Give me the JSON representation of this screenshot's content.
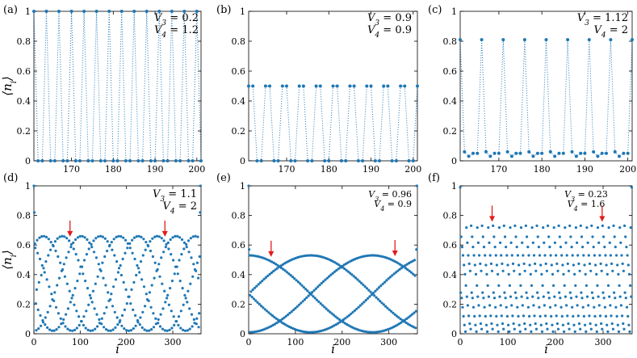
{
  "chart_data": [
    {
      "panel": "(a)",
      "type": "scatter",
      "line_style": "dotted",
      "xlim": [
        161,
        201
      ],
      "ylim": [
        0,
        1
      ],
      "xticks": [
        170,
        180,
        190,
        200
      ],
      "yticks": [
        0,
        0.2,
        0.4,
        0.6,
        0.8,
        1
      ],
      "ylabel": "⟨n_i⟩",
      "xlabel": "",
      "annotations": [
        "V_3 = 0.2",
        "V_4 = 1.2"
      ],
      "pattern": {
        "start": 161,
        "end": 201,
        "period": 3,
        "values": [
          1,
          0,
          0
        ]
      }
    },
    {
      "panel": "(b)",
      "type": "scatter",
      "line_style": "dotted",
      "xlim": [
        161,
        201
      ],
      "ylim": [
        0,
        1
      ],
      "xticks": [
        170,
        180,
        190,
        200
      ],
      "yticks": [
        0,
        0.2,
        0.4,
        0.6,
        0.8,
        1
      ],
      "ylabel": "",
      "xlabel": "",
      "annotations": [
        "V_3 = 0.9",
        "V_4 = 0.9"
      ],
      "pattern": {
        "start": 161,
        "end": 201,
        "period": 4,
        "values": [
          0.5,
          0.5,
          0,
          0
        ]
      }
    },
    {
      "panel": "(c)",
      "type": "scatter",
      "line_style": "dotted",
      "xlim": [
        161,
        201
      ],
      "ylim": [
        0,
        1
      ],
      "xticks": [
        170,
        180,
        190,
        200
      ],
      "yticks": [
        0,
        0.2,
        0.4,
        0.6,
        0.8,
        1
      ],
      "ylabel": "",
      "xlabel": "",
      "annotations": [
        "V_3 = 1.12",
        "V_4 = 2"
      ],
      "pattern": {
        "start": 161,
        "end": 201,
        "period": 5,
        "values": [
          0.81,
          0.06,
          0.03,
          0.05,
          0.05
        ]
      }
    },
    {
      "panel": "(d)",
      "type": "scatter",
      "line_style": "none",
      "xlim": [
        0,
        361
      ],
      "ylim": [
        0,
        1
      ],
      "xticks": [
        0,
        100,
        200,
        300
      ],
      "yticks": [
        0,
        0.2,
        0.4,
        0.6,
        0.8,
        1
      ],
      "ylabel": "⟨n_i⟩",
      "xlabel": "i",
      "annotations": [
        "V_3 = 1.1",
        "V_4 = 2"
      ],
      "arrows_at_x": [
        78,
        283
      ],
      "model": {
        "kind": "wave",
        "N": 361,
        "period": 5,
        "base": 0.02,
        "amp": 0.64,
        "wave_period": 205,
        "edge": 0.82
      }
    },
    {
      "panel": "(e)",
      "type": "scatter",
      "line_style": "none",
      "xlim": [
        0,
        361
      ],
      "ylim": [
        0,
        1
      ],
      "xticks": [
        0,
        100,
        200,
        300
      ],
      "yticks": [
        0,
        0.2,
        0.4,
        0.6,
        0.8,
        1
      ],
      "ylabel": "",
      "xlabel": "i",
      "annotations": [
        "V_3 = 0.96",
        "V_4 = 0.9"
      ],
      "arrows_at_x": [
        48,
        313
      ],
      "model": {
        "kind": "wave",
        "N": 361,
        "period": 4,
        "base": 0.01,
        "amp": 0.52,
        "wave_period": 530,
        "edge": 0.57
      }
    },
    {
      "panel": "(f)",
      "type": "scatter",
      "line_style": "none",
      "xlim": [
        0,
        361
      ],
      "ylim": [
        0,
        1
      ],
      "xticks": [
        0,
        100,
        200,
        300
      ],
      "yticks": [
        0,
        0.2,
        0.4,
        0.6,
        0.8,
        1
      ],
      "ylabel": "",
      "xlabel": "i",
      "annotations": [
        "V_3 = 0.23",
        "V_4 = 1.6"
      ],
      "arrows_at_x": [
        67,
        298
      ],
      "model": {
        "kind": "levels",
        "N": 361,
        "period": 23,
        "levels": [
          0.73,
          0.64,
          0.56,
          0.5,
          0.44,
          0.39,
          0.33,
          0.27,
          0.22,
          0.15,
          0.09,
          0.04,
          0.01
        ],
        "edge": 0.99
      }
    }
  ]
}
